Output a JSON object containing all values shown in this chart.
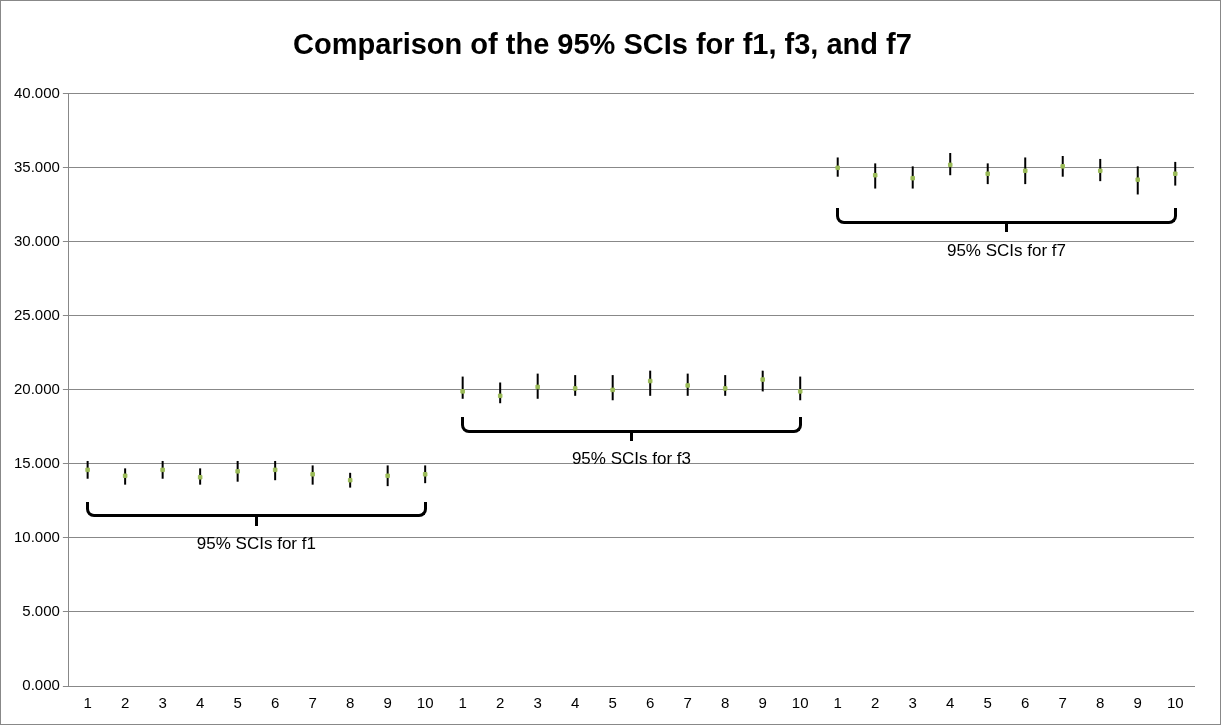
{
  "chart_data": {
    "type": "scatter",
    "title": "Comparison of the 95% SCIs for f1, f3, and f7",
    "categories": [
      "1",
      "2",
      "3",
      "4",
      "5",
      "6",
      "7",
      "8",
      "9",
      "10",
      "1",
      "2",
      "3",
      "4",
      "5",
      "6",
      "7",
      "8",
      "9",
      "10",
      "1",
      "2",
      "3",
      "4",
      "5",
      "6",
      "7",
      "8",
      "9",
      "10"
    ],
    "series": [
      {
        "color": "#9bbb59",
        "values": [
          14.6,
          14.2,
          14.6,
          14.1,
          14.5,
          14.6,
          14.3,
          13.9,
          14.2,
          14.3,
          19.9,
          19.6,
          20.2,
          20.1,
          20.0,
          20.6,
          20.3,
          20.1,
          20.7,
          19.9,
          35.0,
          34.5,
          34.3,
          35.2,
          34.6,
          34.8,
          35.1,
          34.8,
          34.2,
          34.6
        ],
        "errors": [
          [
            14.0,
            15.2
          ],
          [
            13.6,
            14.7
          ],
          [
            14.0,
            15.2
          ],
          [
            13.6,
            14.7
          ],
          [
            13.8,
            15.2
          ],
          [
            13.9,
            15.2
          ],
          [
            13.6,
            14.9
          ],
          [
            13.4,
            14.4
          ],
          [
            13.5,
            14.9
          ],
          [
            13.7,
            14.9
          ],
          [
            19.4,
            20.9
          ],
          [
            19.1,
            20.5
          ],
          [
            19.4,
            21.1
          ],
          [
            19.6,
            21.0
          ],
          [
            19.3,
            21.0
          ],
          [
            19.6,
            21.3
          ],
          [
            19.6,
            21.1
          ],
          [
            19.6,
            21.0
          ],
          [
            19.9,
            21.3
          ],
          [
            19.3,
            20.9
          ],
          [
            34.4,
            35.7
          ],
          [
            33.6,
            35.3
          ],
          [
            33.6,
            35.1
          ],
          [
            34.5,
            36.0
          ],
          [
            33.9,
            35.3
          ],
          [
            33.9,
            35.7
          ],
          [
            34.4,
            35.8
          ],
          [
            34.1,
            35.6
          ],
          [
            33.2,
            35.1
          ],
          [
            33.8,
            35.4
          ]
        ]
      }
    ],
    "annotations": [
      "95% SCIs for f1",
      "95% SCIs for f3",
      "95% SCIs for f7"
    ],
    "ylim": [
      0,
      40
    ],
    "yticks": [
      {
        "value": 0,
        "label": "0.000"
      },
      {
        "value": 5,
        "label": "5.000"
      },
      {
        "value": 10,
        "label": "10.000"
      },
      {
        "value": 15,
        "label": "15.000"
      },
      {
        "value": 20,
        "label": "20.000"
      },
      {
        "value": 25,
        "label": "25.000"
      },
      {
        "value": 30,
        "label": "30.000"
      },
      {
        "value": 35,
        "label": "35.000"
      },
      {
        "value": 40,
        "label": "40.000"
      }
    ],
    "grid": "y",
    "legend": false,
    "marker": "square"
  }
}
